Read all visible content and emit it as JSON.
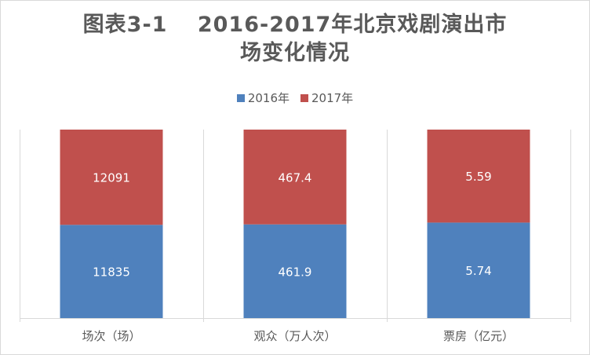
{
  "colors": {
    "series_2016": "#4f81bd",
    "series_2017": "#c0504d",
    "text": "#595959",
    "grid": "#d9d9d9"
  },
  "chart_data": {
    "type": "bar",
    "stacked": true,
    "title_line1": "图表3-1　 2016-2017年北京戏剧演出市",
    "title_line2": "场变化情况",
    "categories": [
      "场次（场）",
      "观众（万人次）",
      "票房（亿元）"
    ],
    "series": [
      {
        "name": "2016年",
        "values": [
          11835,
          461.9,
          5.74
        ],
        "labels": [
          "11835",
          "461.9",
          "5.74"
        ]
      },
      {
        "name": "2017年",
        "values": [
          12091,
          467.4,
          5.59
        ],
        "labels": [
          "12091",
          "467.4",
          "5.59"
        ]
      }
    ],
    "normalized_per_category": true,
    "legend_position": "top",
    "grid": "vertical category separators"
  }
}
